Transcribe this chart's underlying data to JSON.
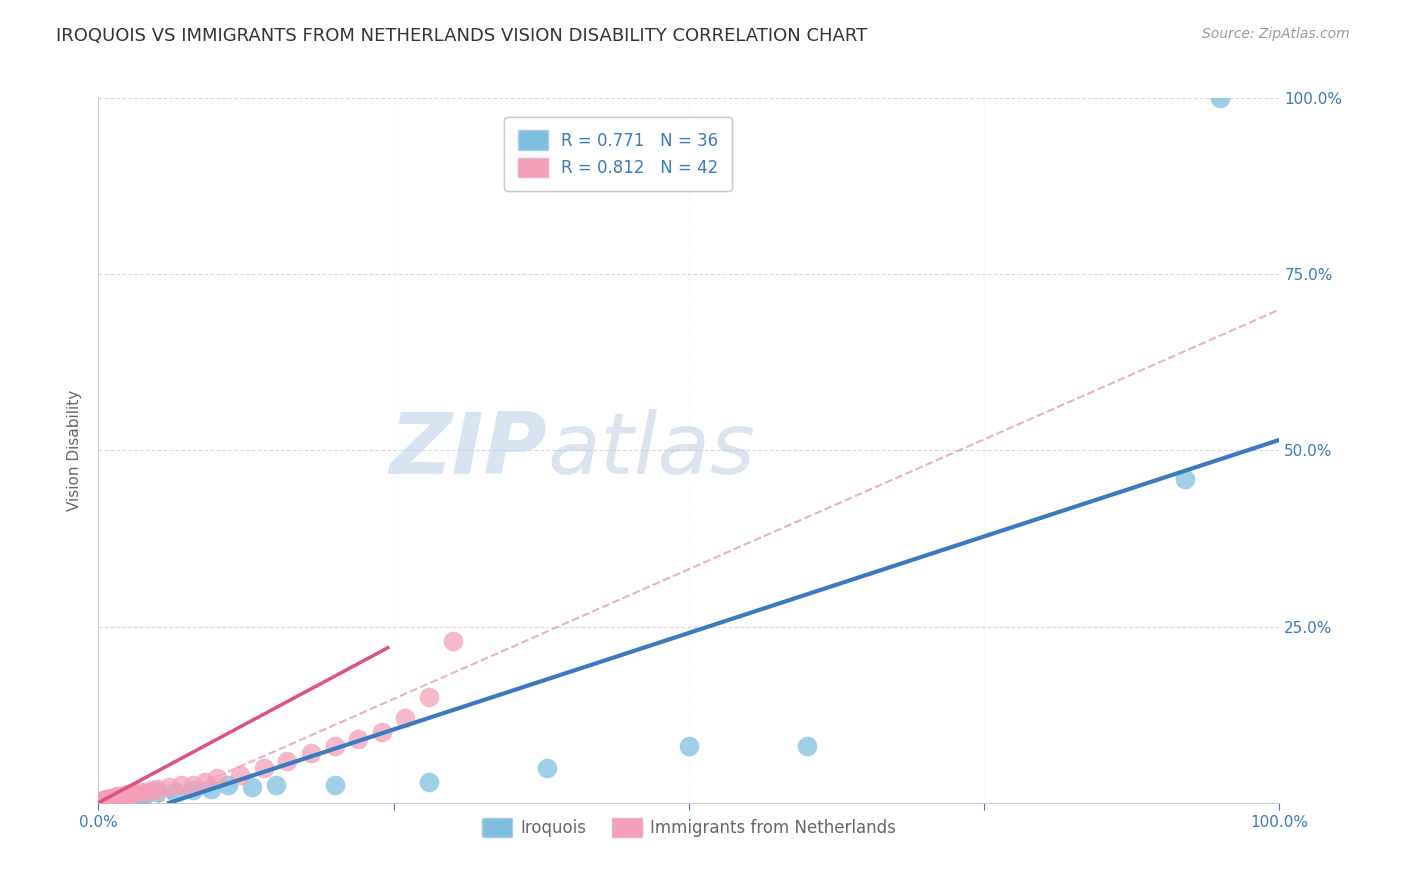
{
  "title": "IROQUOIS VS IMMIGRANTS FROM NETHERLANDS VISION DISABILITY CORRELATION CHART",
  "source": "Source: ZipAtlas.com",
  "xlabel": "",
  "ylabel": "Vision Disability",
  "xlim": [
    0,
    1.0
  ],
  "ylim": [
    0,
    1.0
  ],
  "blue_R": 0.771,
  "blue_N": 36,
  "pink_R": 0.812,
  "pink_N": 42,
  "blue_color": "#7fbfdf",
  "pink_color": "#f4a0b8",
  "blue_line_color": "#3a7abf",
  "pink_line_color": "#e05080",
  "dashed_line_color": "#e090a8",
  "legend_label_blue": "Iroquois",
  "legend_label_pink": "Immigrants from Netherlands",
  "watermark": "ZIPatlas",
  "background_color": "#ffffff",
  "grid_color": "#d8d8d8",
  "blue_scatter_x": [
    0.003,
    0.005,
    0.006,
    0.007,
    0.008,
    0.009,
    0.01,
    0.011,
    0.012,
    0.013,
    0.014,
    0.015,
    0.016,
    0.018,
    0.02,
    0.022,
    0.025,
    0.028,
    0.03,
    0.032,
    0.035,
    0.04,
    0.05,
    0.065,
    0.08,
    0.095,
    0.11,
    0.13,
    0.15,
    0.2,
    0.28,
    0.38,
    0.5,
    0.6,
    0.92,
    0.95
  ],
  "blue_scatter_y": [
    0.003,
    0.004,
    0.003,
    0.006,
    0.004,
    0.005,
    0.005,
    0.006,
    0.006,
    0.007,
    0.005,
    0.007,
    0.008,
    0.006,
    0.008,
    0.008,
    0.01,
    0.008,
    0.01,
    0.012,
    0.01,
    0.012,
    0.015,
    0.015,
    0.018,
    0.02,
    0.025,
    0.022,
    0.025,
    0.025,
    0.03,
    0.05,
    0.08,
    0.08,
    0.46,
    1.0
  ],
  "pink_scatter_x": [
    0.002,
    0.003,
    0.004,
    0.005,
    0.006,
    0.007,
    0.008,
    0.009,
    0.01,
    0.011,
    0.012,
    0.013,
    0.014,
    0.015,
    0.016,
    0.017,
    0.018,
    0.019,
    0.02,
    0.022,
    0.025,
    0.028,
    0.03,
    0.035,
    0.04,
    0.045,
    0.05,
    0.06,
    0.07,
    0.08,
    0.09,
    0.1,
    0.12,
    0.14,
    0.16,
    0.18,
    0.2,
    0.22,
    0.24,
    0.26,
    0.28,
    0.3
  ],
  "pink_scatter_y": [
    0.002,
    0.003,
    0.003,
    0.004,
    0.004,
    0.005,
    0.005,
    0.006,
    0.006,
    0.007,
    0.006,
    0.007,
    0.008,
    0.008,
    0.009,
    0.008,
    0.009,
    0.01,
    0.01,
    0.01,
    0.012,
    0.012,
    0.014,
    0.015,
    0.015,
    0.018,
    0.02,
    0.022,
    0.025,
    0.025,
    0.03,
    0.035,
    0.04,
    0.05,
    0.06,
    0.07,
    0.08,
    0.09,
    0.1,
    0.12,
    0.15,
    0.23
  ],
  "blue_line_x0": 0.06,
  "blue_line_y0": 0.0,
  "blue_line_x1": 1.0,
  "blue_line_y1": 0.515,
  "pink_line_x0": 0.0,
  "pink_line_y0": 0.0,
  "pink_line_x1": 0.245,
  "pink_line_y1": 0.22,
  "dashed_line_x0": 0.05,
  "dashed_line_y0": 0.0,
  "dashed_line_x1": 1.0,
  "dashed_line_y1": 0.7,
  "title_fontsize": 13,
  "axis_label_fontsize": 11,
  "tick_fontsize": 11,
  "legend_fontsize": 12
}
